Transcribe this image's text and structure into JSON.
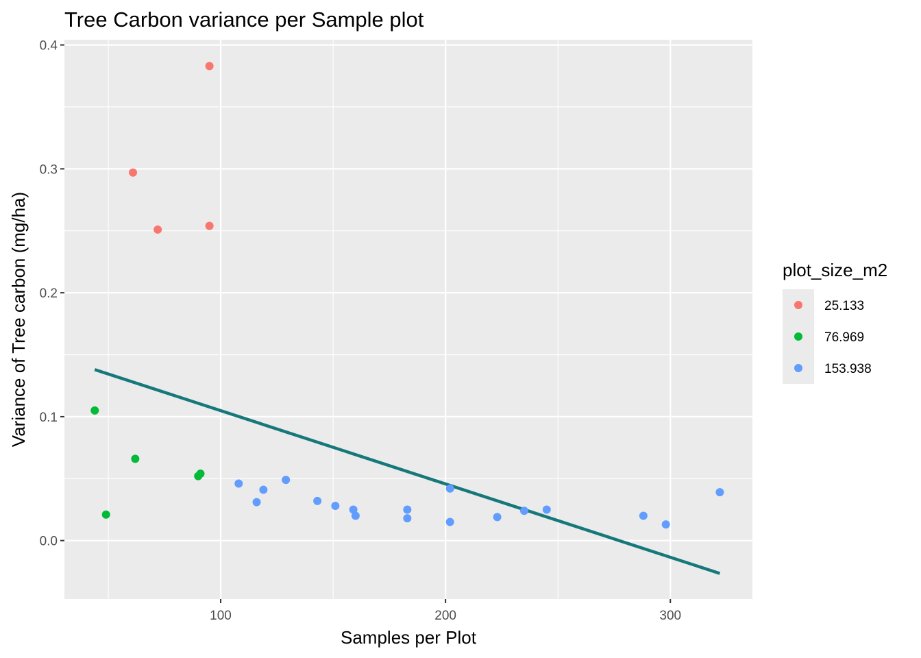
{
  "chart_data": {
    "type": "scatter",
    "title": "Tree Carbon variance per Sample plot",
    "xlabel": "Samples per Plot",
    "ylabel": "Variance of Tree carbon (mg/ha)",
    "xlim": [
      30.5,
      336.5
    ],
    "ylim": [
      -0.0472,
      0.4042
    ],
    "x_ticks": [
      100,
      200,
      300
    ],
    "x_tick_labels": [
      "100",
      "200",
      "300"
    ],
    "y_ticks": [
      0.0,
      0.1,
      0.2,
      0.3,
      0.4
    ],
    "y_tick_labels": [
      "0.0",
      "0.1",
      "0.2",
      "0.3",
      "0.4"
    ],
    "grid": true,
    "legend": {
      "title": "plot_size_m2",
      "position": "right"
    },
    "series": [
      {
        "name": "25.133",
        "color": "#F8766D",
        "points": [
          {
            "x": 61,
            "y": 0.297
          },
          {
            "x": 72,
            "y": 0.251
          },
          {
            "x": 95,
            "y": 0.383
          },
          {
            "x": 95,
            "y": 0.254
          }
        ]
      },
      {
        "name": "76.969",
        "color": "#00BA38",
        "points": [
          {
            "x": 44,
            "y": 0.105
          },
          {
            "x": 49,
            "y": 0.021
          },
          {
            "x": 62,
            "y": 0.066
          },
          {
            "x": 90,
            "y": 0.052
          },
          {
            "x": 91,
            "y": 0.054
          }
        ]
      },
      {
        "name": "153.938",
        "color": "#619CFF",
        "points": [
          {
            "x": 108,
            "y": 0.046
          },
          {
            "x": 116,
            "y": 0.031
          },
          {
            "x": 119,
            "y": 0.041
          },
          {
            "x": 129,
            "y": 0.049
          },
          {
            "x": 143,
            "y": 0.032
          },
          {
            "x": 151,
            "y": 0.028
          },
          {
            "x": 159,
            "y": 0.025
          },
          {
            "x": 160,
            "y": 0.02
          },
          {
            "x": 183,
            "y": 0.025
          },
          {
            "x": 183,
            "y": 0.018
          },
          {
            "x": 202,
            "y": 0.042
          },
          {
            "x": 202,
            "y": 0.015
          },
          {
            "x": 223,
            "y": 0.019
          },
          {
            "x": 235,
            "y": 0.024
          },
          {
            "x": 245,
            "y": 0.025
          },
          {
            "x": 288,
            "y": 0.02
          },
          {
            "x": 298,
            "y": 0.013
          },
          {
            "x": 322,
            "y": 0.039
          }
        ]
      }
    ],
    "trend_line": {
      "type": "linear",
      "color": "#16787A",
      "x": [
        44,
        322
      ],
      "y": [
        0.138,
        -0.0265
      ]
    }
  }
}
